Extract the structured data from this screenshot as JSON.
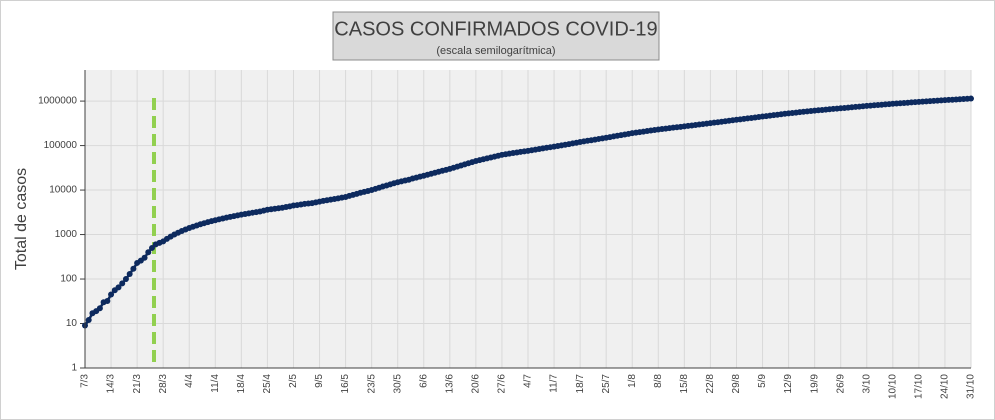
{
  "chart_data": {
    "type": "line",
    "title": "CASOS CONFIRMADOS COVID-19",
    "subtitle": "(escala semilogarítmica)",
    "y_label": "Total de casos",
    "log_scale": true,
    "grid": true,
    "color": "#0d2a5e",
    "ylim": [
      1,
      5000000
    ],
    "yticks": [
      1,
      10,
      100,
      1000,
      10000,
      100000,
      1000000
    ],
    "categories": [
      "7/3",
      null,
      null,
      null,
      null,
      null,
      null,
      "14/3",
      null,
      null,
      null,
      null,
      null,
      null,
      "21/3",
      null,
      null,
      null,
      null,
      null,
      null,
      "28/3",
      null,
      null,
      null,
      null,
      null,
      null,
      "4/4",
      null,
      null,
      null,
      null,
      null,
      null,
      "11/4",
      null,
      null,
      null,
      null,
      null,
      null,
      "18/4",
      null,
      null,
      null,
      null,
      null,
      null,
      "25/4",
      null,
      null,
      null,
      null,
      null,
      null,
      "2/5",
      null,
      null,
      null,
      null,
      null,
      null,
      "9/5",
      null,
      null,
      null,
      null,
      null,
      null,
      "16/5",
      null,
      null,
      null,
      null,
      null,
      null,
      "23/5",
      null,
      null,
      null,
      null,
      null,
      null,
      "30/5",
      null,
      null,
      null,
      null,
      null,
      null,
      "6/6",
      null,
      null,
      null,
      null,
      null,
      null,
      "13/6",
      null,
      null,
      null,
      null,
      null,
      null,
      "20/6",
      null,
      null,
      null,
      null,
      null,
      null,
      "27/6",
      null,
      null,
      null,
      null,
      null,
      null,
      "4/7",
      null,
      null,
      null,
      null,
      null,
      null,
      "11/7",
      null,
      null,
      null,
      null,
      null,
      null,
      "18/7",
      null,
      null,
      null,
      null,
      null,
      null,
      "25/7",
      null,
      null,
      null,
      null,
      null,
      null,
      "1/8",
      null,
      null,
      null,
      null,
      null,
      null,
      "8/8",
      null,
      null,
      null,
      null,
      null,
      null,
      "15/8",
      null,
      null,
      null,
      null,
      null,
      null,
      "22/8",
      null,
      null,
      null,
      null,
      null,
      null,
      "29/8",
      null,
      null,
      null,
      null,
      null,
      null,
      "5/9",
      null,
      null,
      null,
      null,
      null,
      null,
      "12/9",
      null,
      null,
      null,
      null,
      null,
      null,
      "19/9",
      null,
      null,
      null,
      null,
      null,
      null,
      "26/9",
      null,
      null,
      null,
      null,
      null,
      null,
      "3/10",
      null,
      null,
      null,
      null,
      null,
      null,
      "10/10",
      null,
      null,
      null,
      null,
      null,
      null,
      "17/10",
      null,
      null,
      null,
      null,
      null,
      null,
      "24/10",
      null,
      null,
      null,
      null,
      null,
      null,
      "31/10"
    ],
    "values": [
      9,
      12,
      17,
      19,
      22,
      30,
      32,
      45,
      56,
      65,
      80,
      100,
      130,
      170,
      230,
      260,
      300,
      400,
      500,
      600,
      650,
      700,
      800,
      900,
      1000,
      1100,
      1200,
      1300,
      1400,
      1500,
      1600,
      1700,
      1800,
      1900,
      2000,
      2100,
      2200,
      2300,
      2400,
      2500,
      2600,
      2700,
      2800,
      2900,
      3000,
      3100,
      3200,
      3300,
      3450,
      3600,
      3700,
      3800,
      3900,
      4000,
      4150,
      4300,
      4500,
      4600,
      4750,
      4900,
      5000,
      5100,
      5300,
      5500,
      5700,
      5900,
      6100,
      6300,
      6500,
      6750,
      7000,
      7400,
      7800,
      8200,
      8700,
      9100,
      9500,
      10000,
      10600,
      11300,
      12000,
      12700,
      13400,
      14200,
      15000,
      15700,
      16400,
      17100,
      18200,
      19000,
      20000,
      21000,
      22100,
      23300,
      24500,
      25800,
      27100,
      28500,
      30000,
      31800,
      33700,
      35700,
      37800,
      40000,
      42400,
      45000,
      47100,
      49300,
      51600,
      54000,
      56600,
      59200,
      62000,
      64000,
      66000,
      68000,
      70000,
      72000,
      74000,
      76000,
      78500,
      81000,
      83700,
      86400,
      89200,
      92000,
      95000,
      98000,
      101000,
      104500,
      108000,
      112000,
      116000,
      120000,
      124000,
      128000,
      132000,
      136500,
      141000,
      145500,
      150000,
      155000,
      160500,
      166000,
      171500,
      177500,
      183500,
      190000,
      195000,
      200500,
      206000,
      212000,
      218000,
      224000,
      230000,
      235500,
      241000,
      246500,
      252500,
      258000,
      264000,
      270000,
      276500,
      283500,
      290500,
      297500,
      304500,
      312000,
      320000,
      327500,
      335500,
      344000,
      352500,
      361000,
      370500,
      380000,
      389000,
      398500,
      408000,
      418000,
      428000,
      439000,
      450000,
      460500,
      471500,
      483000,
      494500,
      506000,
      518000,
      530000,
      541000,
      552000,
      563500,
      575000,
      586500,
      598000,
      610000,
      621000,
      632000,
      643500,
      655000,
      666500,
      678000,
      690000,
      701500,
      714000,
      726500,
      739000,
      752000,
      765500,
      780000,
      792000,
      804500,
      817000,
      830000,
      843000,
      856500,
      870000,
      882000,
      894500,
      907000,
      920000,
      933000,
      946500,
      960000,
      972500,
      985000,
      998000,
      1011000,
      1024000,
      1037000,
      1050000,
      1062000,
      1075000,
      1088000,
      1101000,
      1114000,
      1127000,
      1140000
    ]
  }
}
